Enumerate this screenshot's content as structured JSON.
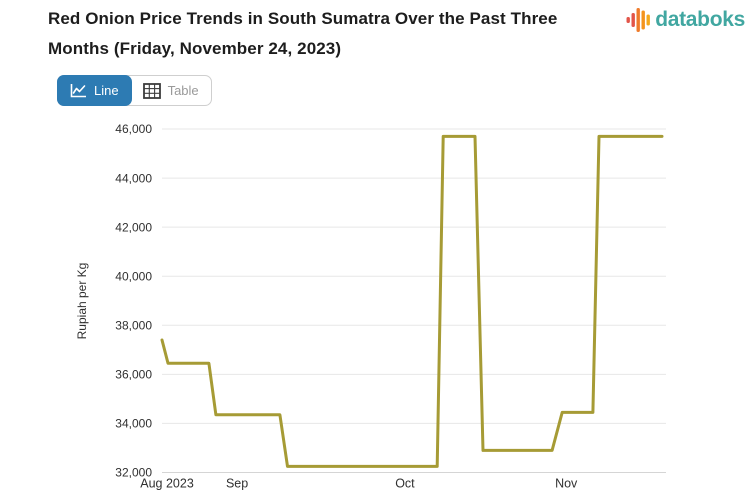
{
  "header": {
    "title_lines": [
      "Red Onion Price Trends in South Sumatra Over the Past Three",
      "Months (Friday, November 24, 2023)"
    ],
    "brand": {
      "name": "databoks",
      "text_color": "#41a7a1",
      "logo_bar_colors": [
        "#e25549",
        "#e25549",
        "#ef7b2a",
        "#f4941d",
        "#f4a81c"
      ]
    }
  },
  "toolbar": {
    "buttons": [
      {
        "label": "Line",
        "active": true,
        "icon": "line-chart-icon"
      },
      {
        "label": "Table",
        "active": false,
        "icon": "table-icon"
      }
    ],
    "active_bg": "#2d7bb3"
  },
  "chart_data": {
    "type": "line",
    "title": "Red Onion Price Trends in South Sumatra Over the Past Three Months (Friday, November 24, 2023)",
    "xlabel": "",
    "ylabel": "Rupiah per Kg",
    "ylim": [
      32000,
      46000
    ],
    "y_ticks": [
      32000,
      34000,
      36000,
      38000,
      40000,
      42000,
      44000,
      46000
    ],
    "x_ticks": [
      {
        "label": "Aug 2023",
        "pos": 0.01
      },
      {
        "label": "Sep",
        "pos": 0.149
      },
      {
        "label": "Oct",
        "pos": 0.482
      },
      {
        "label": "Nov",
        "pos": 0.802
      }
    ],
    "grid": true,
    "legend": false,
    "line_color": "#a69b35",
    "series": [
      {
        "name": "Red onion price",
        "unit": "Rupiah per Kg",
        "points": [
          {
            "pos": 0.0,
            "date_est": "Aug 18",
            "value": 37400
          },
          {
            "pos": 0.012,
            "date_est": "Aug 19",
            "value": 36450
          },
          {
            "pos": 0.093,
            "date_est": "Aug 27",
            "value": 36450
          },
          {
            "pos": 0.107,
            "date_est": "Aug 29",
            "value": 34350
          },
          {
            "pos": 0.234,
            "date_est": "Sep 8",
            "value": 34350
          },
          {
            "pos": 0.249,
            "date_est": "Sep 10",
            "value": 32250
          },
          {
            "pos": 0.546,
            "date_est": "Oct 6",
            "value": 32250
          },
          {
            "pos": 0.558,
            "date_est": "Oct 8",
            "value": 45700
          },
          {
            "pos": 0.621,
            "date_est": "Oct 13",
            "value": 45700
          },
          {
            "pos": 0.637,
            "date_est": "Oct 15",
            "value": 32900
          },
          {
            "pos": 0.774,
            "date_est": "Oct 27",
            "value": 32900
          },
          {
            "pos": 0.794,
            "date_est": "Oct 29",
            "value": 34450
          },
          {
            "pos": 0.855,
            "date_est": "Nov 3",
            "value": 34450
          },
          {
            "pos": 0.867,
            "date_est": "Nov 5",
            "value": 45700
          },
          {
            "pos": 0.992,
            "date_est": "Nov 24",
            "value": 45700
          }
        ]
      }
    ]
  }
}
